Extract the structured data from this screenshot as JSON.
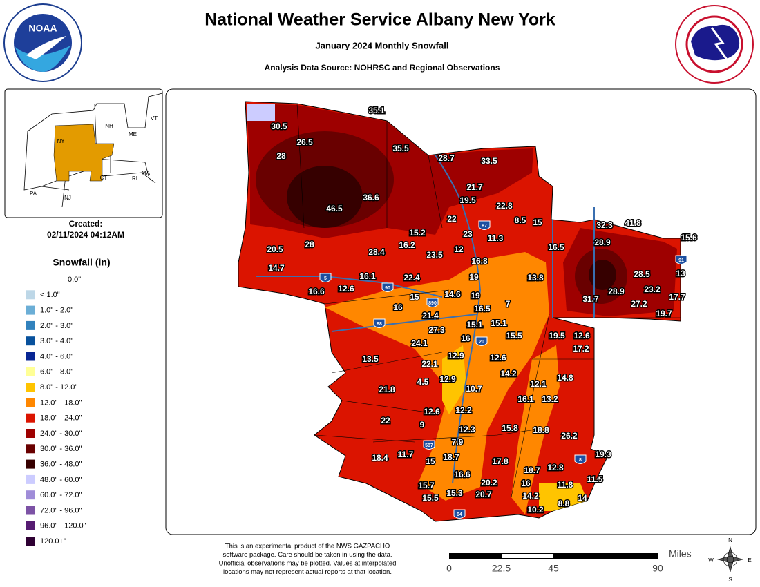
{
  "header": {
    "title": "National Weather Service Albany New York",
    "subtitle": "January 2024 Monthly Snowfall",
    "source": "Analysis Data Source: NOHRSC and Regional Observations",
    "noaa_logo": "NOAA"
  },
  "inset": {
    "labels": [
      "VT",
      "NH",
      "ME",
      "NY",
      "MA",
      "CT",
      "RI",
      "PA",
      "NJ"
    ],
    "created_label": "Created:",
    "created": "02/11/2024 04:12AM"
  },
  "legend": {
    "title": "Snowfall (in)",
    "items": [
      {
        "label": "0.0\"",
        "color": "#ffffff"
      },
      {
        "label": "< 1.0\"",
        "color": "#bdd7e7"
      },
      {
        "label": "1.0\" - 2.0\"",
        "color": "#6baed6"
      },
      {
        "label": "2.0\" - 3.0\"",
        "color": "#3182bd"
      },
      {
        "label": "3.0\" - 4.0\"",
        "color": "#08519c"
      },
      {
        "label": "4.0\" - 6.0\"",
        "color": "#082694"
      },
      {
        "label": "6.0\" - 8.0\"",
        "color": "#ffff96"
      },
      {
        "label": "8.0\" - 12.0\"",
        "color": "#ffc400"
      },
      {
        "label": "12.0\" - 18.0\"",
        "color": "#ff8700"
      },
      {
        "label": "18.0\" - 24.0\"",
        "color": "#db1400"
      },
      {
        "label": "24.0\" - 30.0\"",
        "color": "#9e0000"
      },
      {
        "label": "30.0\" - 36.0\"",
        "color": "#690000"
      },
      {
        "label": "36.0\" - 48.0\"",
        "color": "#360000"
      },
      {
        "label": "48.0\" - 60.0\"",
        "color": "#ccccff"
      },
      {
        "label": "60.0\" - 72.0\"",
        "color": "#9f8cd8"
      },
      {
        "label": "72.0\" - 96.0\"",
        "color": "#7c52a5"
      },
      {
        "label": "96.0\" - 120.0\"",
        "color": "#561c72"
      },
      {
        "label": "120.0+\"",
        "color": "#2e0033"
      }
    ]
  },
  "map": {
    "stations": [
      35.1,
      30.5,
      26.5,
      28,
      35.5,
      28.7,
      33.5,
      21.7,
      19.5,
      22.8,
      36.6,
      46.5,
      22,
      8.5,
      15,
      32.3,
      41.8,
      15.6,
      15.2,
      23,
      11.3,
      28.9,
      20.5,
      28,
      16.2,
      12,
      28.4,
      23.5,
      16.5,
      16.8,
      14.7,
      16.1,
      22.4,
      19,
      13.8,
      28.5,
      13,
      16.6,
      12.6,
      15,
      14.6,
      19,
      28.9,
      23.2,
      17.7,
      31.7,
      7,
      27.2,
      16,
      16.5,
      21.4,
      15.1,
      15.1,
      19.7,
      27.3,
      16,
      15.5,
      19.5,
      12.6,
      24.1,
      17.2,
      13.5,
      12.9,
      12.6,
      22.1,
      14.2,
      12.9,
      4.5,
      12.1,
      14.8,
      21.8,
      10.7,
      16.1,
      13.2,
      12.6,
      12.2,
      22,
      9,
      12.3,
      15.8,
      18.8,
      26.2,
      7.9,
      18.4,
      11.7,
      15,
      18.7,
      17.8,
      19.3,
      18.7,
      12.8,
      16.6,
      20.2,
      11.5,
      15.7,
      16,
      11.8,
      15.3,
      20.7,
      14.2,
      14,
      15.5,
      8.8,
      10.2
    ],
    "shields": [
      "87",
      "5",
      "90",
      "890",
      "88",
      "20",
      "91",
      "8",
      "587",
      "84"
    ]
  },
  "footer": {
    "disclaimer": [
      "This is an experimental product of the NWS GAZPACHO",
      "software package. Care should be taken in using the data.",
      "Unofficial observations may be plotted. Values at interpolated",
      "locations may not represent actual reports at that location."
    ],
    "scale_unit": "Miles",
    "scale_ticks": [
      0,
      22.5,
      45,
      90
    ],
    "compass": [
      "N",
      "E",
      "S",
      "W"
    ]
  }
}
